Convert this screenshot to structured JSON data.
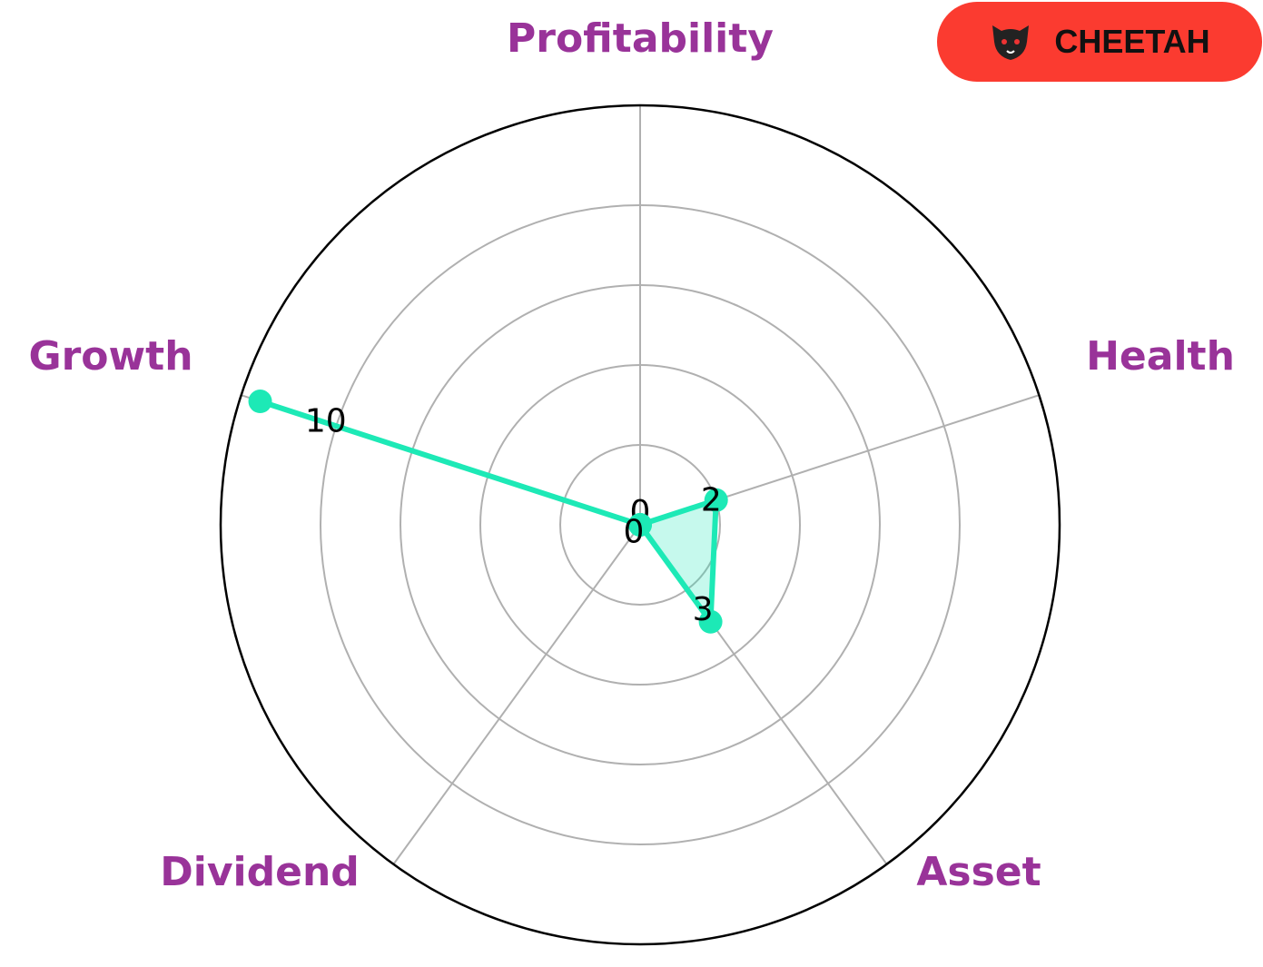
{
  "chart_data": {
    "type": "radar",
    "categories": [
      "Profitability",
      "Health",
      "Asset",
      "Dividend",
      "Growth"
    ],
    "values": [
      0,
      2,
      3,
      0,
      10
    ],
    "color": "#1de9b6",
    "label_color": "#993399",
    "ylim": [
      0,
      10.5
    ],
    "yticks": [
      2,
      4,
      6,
      8
    ],
    "grid": true
  },
  "badge": {
    "label": "CHEETAH"
  }
}
